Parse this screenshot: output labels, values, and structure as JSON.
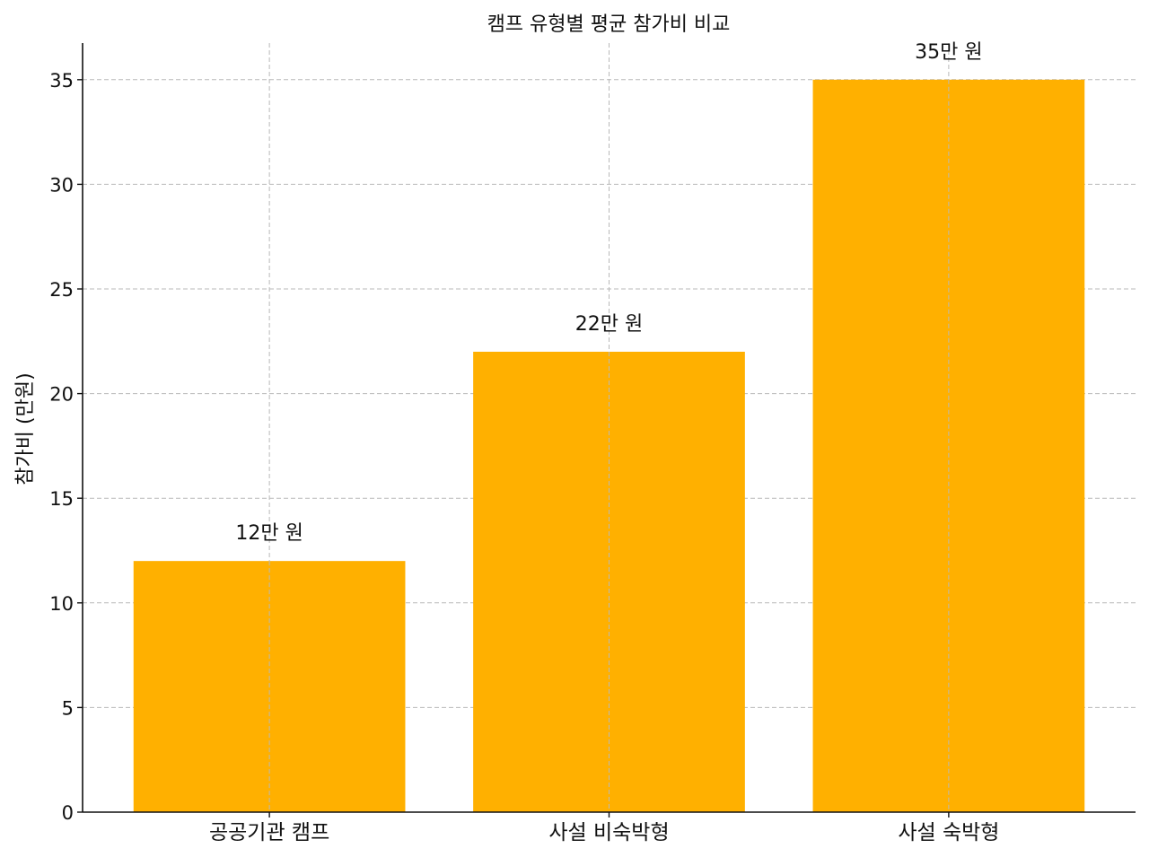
{
  "chart_data": {
    "type": "bar",
    "title": "캠프 유형별 평균 참가비 비교",
    "xlabel": "",
    "ylabel": "참가비 (만원)",
    "categories": [
      "공공기관 캠프",
      "사설 비숙박형",
      "사설 숙박형"
    ],
    "values": [
      12,
      22,
      35
    ],
    "data_labels": [
      "12만 원",
      "22만 원",
      "35만 원"
    ],
    "ylim": [
      0,
      36.75
    ],
    "yticks": [
      0,
      5,
      10,
      15,
      20,
      25,
      30,
      35
    ],
    "grid": true,
    "bar_color": "#FFB000"
  }
}
